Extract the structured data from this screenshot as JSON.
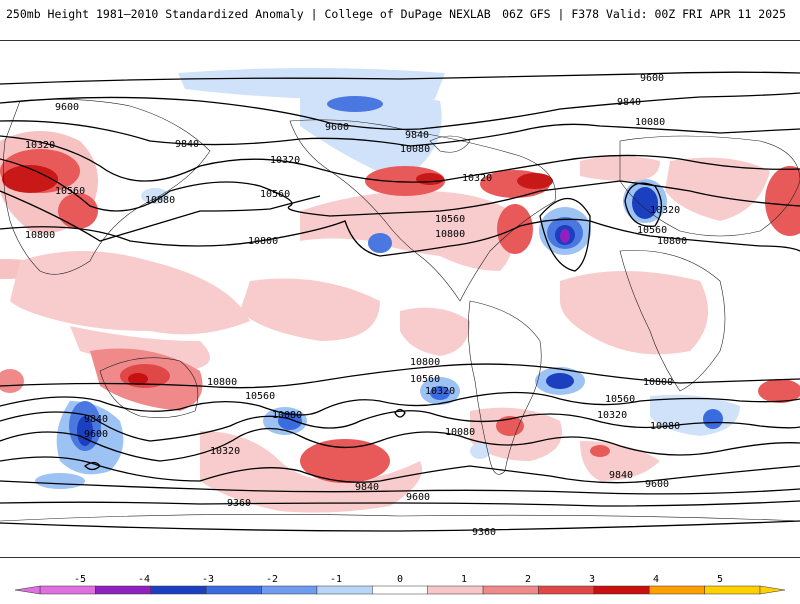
{
  "header": {
    "title": "250mb Height 1981–2010 Standardized Anomaly | College of DuPage NEXLAB",
    "run_info": "06Z GFS | F378 Valid: 00Z FRI APR 11 2025"
  },
  "contour_labels": [
    "9600",
    "9840",
    "10080",
    "10320",
    "10560",
    "10800",
    "9360"
  ],
  "colorbar": {
    "tick_labels": [
      "-5",
      "-4",
      "-3",
      "-2",
      "-1",
      "0",
      "1",
      "2",
      "3",
      "4",
      "5"
    ],
    "colors": [
      "#e070e0",
      "#9020c0",
      "#1a3fbf",
      "#3a6ce0",
      "#6f9bf0",
      "#b8d6f8",
      "#ffffff",
      "#f8c6c6",
      "#f08a8a",
      "#e04848",
      "#c81010",
      "#ff9e00",
      "#ffd000"
    ]
  }
}
